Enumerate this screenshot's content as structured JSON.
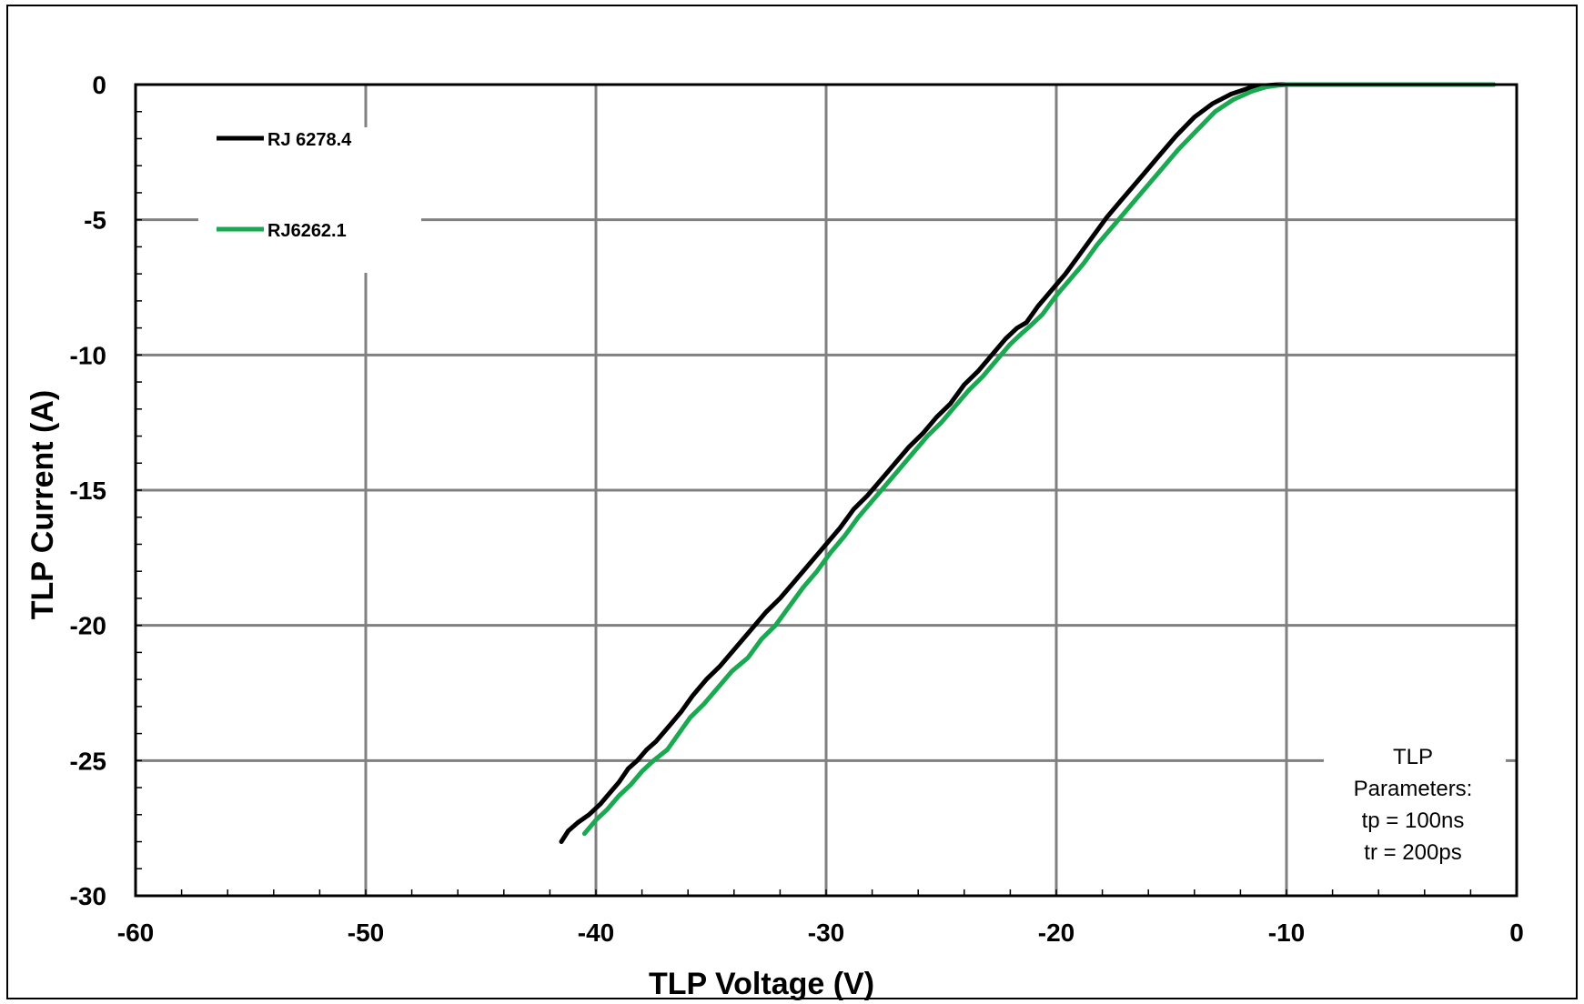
{
  "chart_data": {
    "type": "line",
    "title": "",
    "xlabel": "TLP Voltage (V)",
    "ylabel": "TLP Current (A)",
    "xlim": [
      -60,
      0
    ],
    "ylim": [
      -30,
      0
    ],
    "x_ticks": [
      -60,
      -50,
      -40,
      -30,
      -20,
      -10,
      0
    ],
    "y_ticks": [
      0,
      -5,
      -10,
      -15,
      -20,
      -25,
      -30
    ],
    "grid": true,
    "legend_position": "top-left",
    "series": [
      {
        "name": "RJ 6278.4",
        "color": "#000000",
        "x": [
          -41.5,
          -41.2,
          -40.8,
          -40.3,
          -39.8,
          -39.5,
          -39.0,
          -38.6,
          -38.2,
          -37.8,
          -37.4,
          -36.8,
          -36.3,
          -35.8,
          -35.2,
          -34.6,
          -34.0,
          -33.3,
          -32.6,
          -32.0,
          -31.4,
          -30.7,
          -30.0,
          -29.4,
          -28.8,
          -28.2,
          -27.6,
          -27.0,
          -26.4,
          -25.8,
          -25.2,
          -24.6,
          -24.0,
          -23.4,
          -22.8,
          -22.2,
          -21.7,
          -21.3,
          -20.8,
          -20.2,
          -19.6,
          -19.0,
          -18.4,
          -17.8,
          -17.2,
          -16.4,
          -15.6,
          -14.8,
          -14.0,
          -13.2,
          -12.4,
          -11.6,
          -11.0,
          -10.5,
          -10.2,
          -10.0,
          -8.0,
          -5.0,
          -2.0,
          -1.0
        ],
        "y": [
          -28.0,
          -27.6,
          -27.3,
          -27.0,
          -26.6,
          -26.3,
          -25.8,
          -25.3,
          -25.0,
          -24.6,
          -24.3,
          -23.7,
          -23.2,
          -22.6,
          -22.0,
          -21.5,
          -20.9,
          -20.2,
          -19.5,
          -19.0,
          -18.4,
          -17.7,
          -17.0,
          -16.4,
          -15.7,
          -15.2,
          -14.6,
          -14.0,
          -13.4,
          -12.9,
          -12.3,
          -11.8,
          -11.1,
          -10.6,
          -10.0,
          -9.4,
          -9.0,
          -8.8,
          -8.2,
          -7.6,
          -7.0,
          -6.3,
          -5.6,
          -4.9,
          -4.3,
          -3.5,
          -2.7,
          -1.9,
          -1.2,
          -0.7,
          -0.35,
          -0.12,
          -0.04,
          -0.01,
          0.0,
          0.0,
          0.0,
          0.0,
          0.0,
          0.0
        ]
      },
      {
        "name": "RJ6262.1",
        "color": "#1aa850",
        "x": [
          -40.5,
          -40.0,
          -39.5,
          -39.0,
          -38.5,
          -38.0,
          -37.5,
          -36.9,
          -36.4,
          -35.9,
          -35.3,
          -34.7,
          -34.1,
          -33.4,
          -32.8,
          -32.2,
          -31.6,
          -31.0,
          -30.4,
          -29.8,
          -29.2,
          -28.6,
          -28.0,
          -27.4,
          -26.8,
          -26.2,
          -25.6,
          -25.0,
          -24.4,
          -23.8,
          -23.2,
          -22.6,
          -22.0,
          -21.5,
          -21.1,
          -20.6,
          -20.0,
          -19.4,
          -18.8,
          -18.2,
          -17.6,
          -17.0,
          -16.3,
          -15.5,
          -14.7,
          -13.9,
          -13.1,
          -12.3,
          -11.5,
          -10.9,
          -10.4,
          -10.1,
          -10.0,
          -8.0,
          -5.0,
          -2.0,
          -1.0
        ],
        "y": [
          -27.7,
          -27.2,
          -26.8,
          -26.3,
          -25.9,
          -25.4,
          -25.0,
          -24.6,
          -24.0,
          -23.4,
          -22.9,
          -22.3,
          -21.7,
          -21.2,
          -20.5,
          -20.0,
          -19.3,
          -18.6,
          -18.0,
          -17.3,
          -16.7,
          -16.0,
          -15.4,
          -14.8,
          -14.2,
          -13.6,
          -13.0,
          -12.5,
          -11.9,
          -11.3,
          -10.8,
          -10.2,
          -9.6,
          -9.2,
          -8.9,
          -8.5,
          -7.8,
          -7.2,
          -6.6,
          -5.9,
          -5.3,
          -4.7,
          -4.0,
          -3.2,
          -2.4,
          -1.7,
          -1.0,
          -0.55,
          -0.25,
          -0.09,
          -0.03,
          -0.01,
          0.0,
          0.0,
          0.0,
          0.0,
          0.0
        ]
      }
    ],
    "annotation": [
      "TLP",
      "Parameters:",
      "tp = 100ns",
      "tr = 200ps"
    ]
  }
}
